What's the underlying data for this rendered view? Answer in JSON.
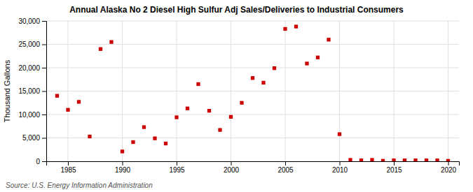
{
  "chart_data": {
    "type": "scatter",
    "title": "Annual Alaska No 2 Diesel High Sulfur Adj Sales/Deliveries to Industrial Consumers",
    "ylabel": "Thousand Gallons",
    "annotations": [
      "Source: U.S. Energy Information Administration"
    ],
    "x": [
      1984,
      1985,
      1986,
      1987,
      1988,
      1989,
      1990,
      1991,
      1992,
      1993,
      1994,
      1995,
      1996,
      1997,
      1998,
      1999,
      2000,
      2001,
      2002,
      2003,
      2004,
      2005,
      2006,
      2007,
      2008,
      2009,
      2010,
      2011,
      2012,
      2013,
      2014,
      2015,
      2016,
      2017,
      2018,
      2019,
      2020
    ],
    "values": [
      14000,
      11000,
      12700,
      5300,
      24000,
      25500,
      2100,
      4100,
      7300,
      4900,
      3800,
      9400,
      11300,
      16500,
      10800,
      6700,
      9500,
      12500,
      17800,
      16800,
      19900,
      28300,
      28800,
      20900,
      22200,
      26000,
      5800,
      300,
      200,
      300,
      100,
      200,
      200,
      200,
      200,
      200,
      100
    ],
    "color": "#cc0000",
    "marker": "square",
    "xlim": [
      1983,
      2021
    ],
    "ylim": [
      0,
      30000
    ],
    "xticks": [
      1985,
      1990,
      1995,
      2000,
      2005,
      2010,
      2015,
      2020
    ],
    "yticks": [
      0,
      {
        "value": 5000,
        "label": "5,000"
      },
      {
        "value": 10000,
        "label": "10,000"
      },
      {
        "value": 15000,
        "label": "15,000"
      },
      {
        "value": 20000,
        "label": "20,000"
      },
      {
        "value": 25000,
        "label": "25,000"
      },
      {
        "value": 30000,
        "label": "30,000"
      }
    ],
    "grid": true
  }
}
